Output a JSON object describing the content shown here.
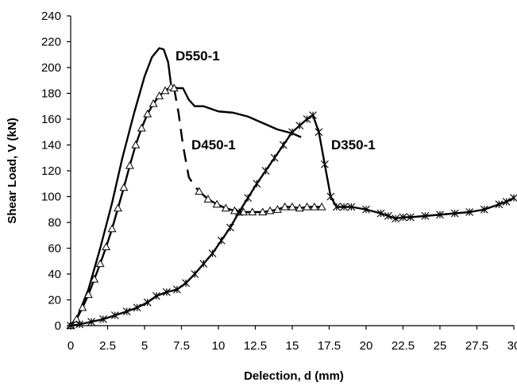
{
  "chart_data": {
    "type": "line",
    "title": "",
    "xlabel": "Delection, d (mm)",
    "ylabel": "Shear Load, V (kN)",
    "xlim": [
      0,
      30
    ],
    "ylim": [
      0,
      240
    ],
    "xticks": [
      "0",
      "2.5",
      "5",
      "7.5",
      "10",
      "12.5",
      "15",
      "17.5",
      "20",
      "22.5",
      "25",
      "27.5",
      "30"
    ],
    "yticks": [
      "0",
      "20",
      "40",
      "60",
      "80",
      "100",
      "120",
      "140",
      "160",
      "180",
      "200",
      "220",
      "240"
    ],
    "grid": false,
    "legend": "none",
    "series": [
      {
        "name": "D550-1",
        "marker": "none",
        "dash": "solid",
        "x": [
          0,
          0.5,
          1.2,
          2.0,
          2.8,
          3.5,
          4.3,
          5.0,
          5.5,
          6.0,
          6.3,
          6.6,
          6.8,
          7.2,
          7.6,
          8.0,
          8.4,
          9.0,
          10.0,
          11.0,
          12.0,
          13.0,
          14.0,
          15.0,
          15.6
        ],
        "y": [
          0,
          8,
          28,
          60,
          95,
          130,
          165,
          193,
          208,
          215,
          214,
          204,
          186,
          184,
          184,
          175,
          170,
          170,
          166,
          165,
          162,
          157,
          152,
          149,
          146
        ],
        "label": "D550-1"
      },
      {
        "name": "D450-1",
        "marker": "triangle",
        "dash": "piecewise",
        "x": [
          0,
          0.4,
          0.8,
          1.2,
          1.6,
          2.0,
          2.4,
          2.8,
          3.2,
          3.6,
          4.0,
          4.4,
          4.8,
          5.2,
          5.6,
          6.0,
          6.4,
          6.8,
          7.0,
          7.3,
          7.6,
          8.0,
          8.4,
          8.7,
          9.3,
          9.9,
          10.5,
          11.1,
          11.7,
          12.3,
          13.0,
          13.5,
          14.0,
          14.5,
          15.0,
          15.5,
          16.0,
          16.5,
          17.0
        ],
        "y": [
          0,
          5,
          14,
          24,
          36,
          48,
          61,
          75,
          91,
          107,
          124,
          140,
          153,
          164,
          172,
          178,
          182,
          185,
          184,
          165,
          140,
          115,
          108,
          104,
          98,
          94,
          91,
          89,
          88,
          88,
          88,
          89,
          90,
          92,
          92,
          91,
          92,
          92,
          92
        ],
        "solid_until_index": 18,
        "dashed_until_index": 23,
        "label": "D450-1"
      },
      {
        "name": "D350-1",
        "marker": "star",
        "dash": "solid",
        "x": [
          0,
          0.6,
          1.4,
          2.2,
          3.0,
          3.8,
          4.5,
          5.2,
          5.8,
          6.5,
          7.2,
          7.8,
          8.4,
          9.0,
          9.6,
          10.2,
          10.8,
          11.4,
          12.0,
          12.6,
          13.2,
          13.8,
          14.4,
          15.0,
          15.5,
          16.0,
          16.4,
          16.8,
          17.2,
          17.6,
          18.0,
          18.5,
          19.0,
          20.0,
          21.0,
          21.5,
          22.0,
          22.5,
          23.0,
          24.0,
          25.0,
          26.0,
          27.0,
          28.0,
          29.0,
          29.5,
          30.0
        ],
        "y": [
          0,
          1,
          3,
          5,
          8,
          11,
          14,
          18,
          23,
          26,
          28,
          33,
          40,
          48,
          56,
          66,
          76,
          88,
          99,
          110,
          120,
          130,
          140,
          150,
          155,
          160,
          163,
          150,
          125,
          100,
          92,
          92,
          92,
          90,
          87,
          85,
          83,
          84,
          84,
          85,
          86,
          87,
          88,
          90,
          94,
          96,
          99
        ],
        "label": "D350-1"
      }
    ]
  }
}
